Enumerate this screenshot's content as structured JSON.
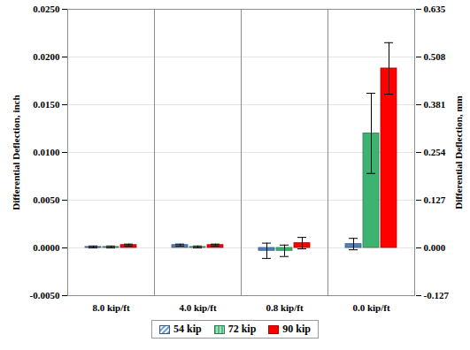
{
  "chart_data": {
    "type": "bar",
    "categories": [
      "8.0 kip/ft",
      "4.0 kip/ft",
      "0.8 kip/ft",
      "0.0 kip/ft"
    ],
    "series": [
      {
        "name": "54 kip",
        "color": "#4f81bd",
        "values": [
          0.0001,
          0.0003,
          -0.0003,
          0.0004
        ],
        "errors": [
          0.0001,
          0.0001,
          0.0008,
          0.0006
        ]
      },
      {
        "name": "72 kip",
        "color": "#3cb371",
        "values": [
          0.0001,
          0.0001,
          -0.0003,
          0.012
        ],
        "errors": [
          0.0001,
          0.0001,
          0.0006,
          0.0042
        ]
      },
      {
        "name": "90 kip",
        "color": "#ff0000",
        "values": [
          0.0003,
          0.0003,
          0.0005,
          0.0188
        ],
        "errors": [
          0.0001,
          0.0001,
          0.0006,
          0.0027
        ]
      }
    ],
    "y_label": "Differential Deflection, inch",
    "y2_label": "Differential Deflection, mm",
    "ylim": [
      -0.005,
      0.025
    ],
    "yticks": [
      {
        "value": -0.005,
        "label": "-0.0050"
      },
      {
        "value": 0,
        "label": "0.0000"
      },
      {
        "value": 0.005,
        "label": "0.0050"
      },
      {
        "value": 0.01,
        "label": "0.0100"
      },
      {
        "value": 0.015,
        "label": "0.0150"
      },
      {
        "value": 0.02,
        "label": "0.0200"
      },
      {
        "value": 0.025,
        "label": "0.0250"
      }
    ],
    "y2lim": [
      -0.127,
      0.635
    ],
    "y2ticks": [
      -0.127,
      {
        "value": 0,
        "label": "0.000"
      },
      0.127,
      0.254,
      0.381,
      0.508,
      0.635
    ],
    "grid": true,
    "legend": "bottom"
  }
}
